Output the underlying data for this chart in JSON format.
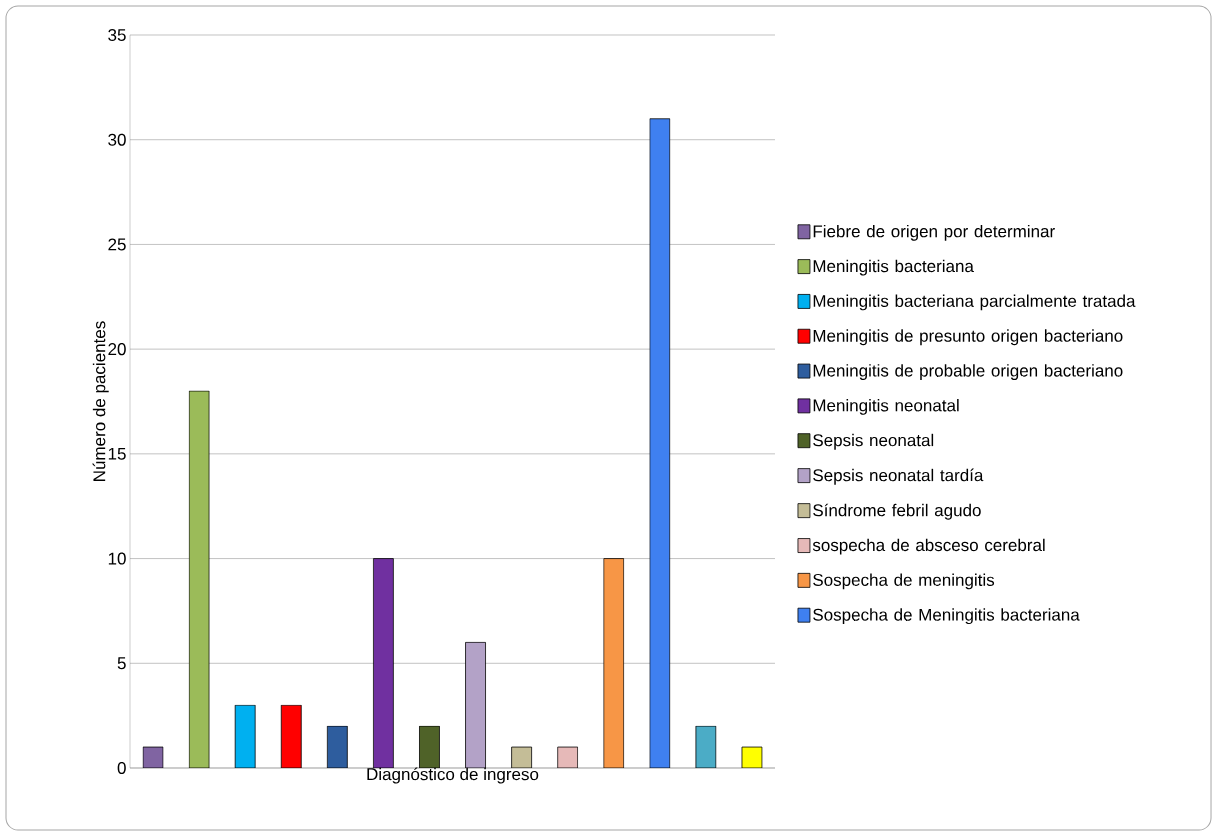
{
  "chart_data": {
    "type": "bar",
    "xlabel": "Diagnóstico de ingreso",
    "ylabel": "Número de pacientes",
    "categories": [
      null,
      null,
      null,
      null,
      null,
      null,
      null,
      null,
      null,
      null,
      null,
      null,
      null,
      null
    ],
    "series": [
      {
        "name": "Fiebre de origen por determinar",
        "color": "#8064a2",
        "values": [
          1,
          null,
          null,
          null,
          null,
          null,
          null,
          null,
          null,
          null,
          null,
          null,
          null,
          null
        ]
      },
      {
        "name": "Meningitis bacteriana",
        "color": "#9bbb59",
        "values": [
          null,
          18,
          null,
          null,
          null,
          null,
          null,
          null,
          null,
          null,
          null,
          null,
          null,
          null
        ]
      },
      {
        "name": "Meningitis bacteriana parcialmente tratada",
        "color": "#00b0f0",
        "values": [
          null,
          null,
          3,
          null,
          null,
          null,
          null,
          null,
          null,
          null,
          null,
          null,
          null,
          null
        ]
      },
      {
        "name": "Meningitis de presunto origen bacteriano",
        "color": "#ff0000",
        "values": [
          null,
          null,
          null,
          3,
          null,
          null,
          null,
          null,
          null,
          null,
          null,
          null,
          null,
          null
        ]
      },
      {
        "name": "Meningitis de probable origen bacteriano",
        "color": "#2e5d9e",
        "values": [
          null,
          null,
          null,
          null,
          2,
          null,
          null,
          null,
          null,
          null,
          null,
          null,
          null,
          null
        ]
      },
      {
        "name": "Meningitis neonatal",
        "color": "#7030a0",
        "values": [
          null,
          null,
          null,
          null,
          null,
          10,
          null,
          null,
          null,
          null,
          null,
          null,
          null,
          null
        ]
      },
      {
        "name": "Sepsis neonatal",
        "color": "#4f6228",
        "values": [
          null,
          null,
          null,
          null,
          null,
          null,
          2,
          null,
          null,
          null,
          null,
          null,
          null,
          null
        ]
      },
      {
        "name": "Sepsis neonatal tardía",
        "color": "#b3a2c7",
        "values": [
          null,
          null,
          null,
          null,
          null,
          null,
          null,
          6,
          null,
          null,
          null,
          null,
          null,
          null
        ]
      },
      {
        "name": "Síndrome febril agudo",
        "color": "#c4bd97",
        "values": [
          null,
          null,
          null,
          null,
          null,
          null,
          null,
          null,
          1,
          null,
          null,
          null,
          null,
          null
        ]
      },
      {
        "name": "sospecha de absceso cerebral",
        "color": "#e6b9b8",
        "values": [
          null,
          null,
          null,
          null,
          null,
          null,
          null,
          null,
          null,
          1,
          null,
          null,
          null,
          null
        ]
      },
      {
        "name": "Sospecha de meningitis",
        "color": "#f79646",
        "values": [
          null,
          null,
          null,
          null,
          null,
          null,
          null,
          null,
          null,
          null,
          10,
          null,
          null,
          null
        ]
      },
      {
        "name": "Sospecha de Meningitis bacteriana",
        "color": "#3f80f0",
        "values": [
          null,
          null,
          null,
          null,
          null,
          null,
          null,
          null,
          null,
          null,
          null,
          31,
          null,
          null
        ]
      },
      {
        "color": "#4bacc6",
        "values": [
          null,
          null,
          null,
          null,
          null,
          null,
          null,
          null,
          null,
          null,
          null,
          null,
          2,
          null
        ]
      },
      {
        "color": "#ffff00",
        "values": [
          null,
          null,
          null,
          null,
          null,
          null,
          null,
          null,
          null,
          null,
          null,
          null,
          null,
          1
        ]
      }
    ],
    "ylim": [
      0,
      35
    ],
    "yticks": [
      0,
      5,
      10,
      15,
      20,
      25,
      30,
      35
    ],
    "grid": "y",
    "legend": "right"
  }
}
